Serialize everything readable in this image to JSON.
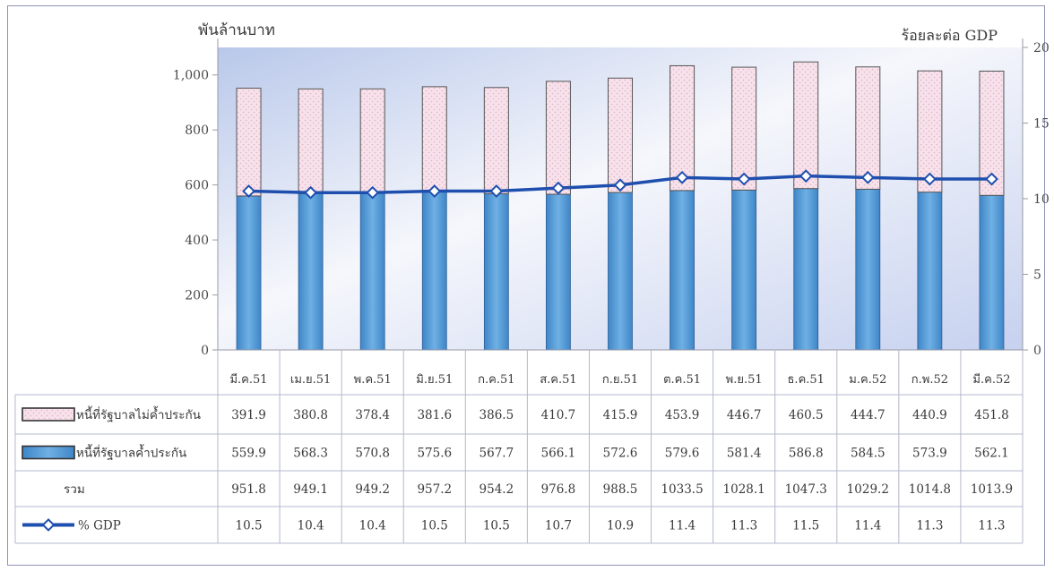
{
  "chart_data": {
    "type": "bar",
    "stacked": true,
    "left_axis_label": "พันล้านบาท",
    "right_axis_label": "ร้อยละต่อ GDP",
    "categories": [
      "มี.ค.51",
      "เม.ย.51",
      "พ.ค.51",
      "มิ.ย.51",
      "ก.ค.51",
      "ส.ค.51",
      "ก.ย.51",
      "ต.ค.51",
      "พ.ย.51",
      "ธ.ค.51",
      "ม.ค.52",
      "ก.พ.52",
      "มี.ค.52"
    ],
    "left_ylim": [
      0,
      1100
    ],
    "left_yticks": [
      0,
      200,
      400,
      600,
      800,
      1000
    ],
    "left_ytick_labels": [
      "0",
      "200",
      "400",
      "600",
      "800",
      "1,000"
    ],
    "right_ylim": [
      0,
      20
    ],
    "right_yticks": [
      0,
      5,
      10,
      15,
      20
    ],
    "right_ytick_labels": [
      "0",
      "5",
      "10",
      "15",
      "20"
    ],
    "grid": false,
    "series": [
      {
        "name": "หนี้ที่รัฐบาลค้ำประกัน",
        "kind": "bar",
        "color": "#5b9fd8",
        "values": [
          559.9,
          568.3,
          570.8,
          575.6,
          567.7,
          566.1,
          572.6,
          579.6,
          581.4,
          586.8,
          584.5,
          573.9,
          562.1
        ]
      },
      {
        "name": "หนี้ที่รัฐบาลไม่ค้ำประกัน",
        "kind": "bar",
        "color": "#f5dbe6",
        "values": [
          391.9,
          380.8,
          378.4,
          381.6,
          386.5,
          410.7,
          415.9,
          453.9,
          446.7,
          460.5,
          444.7,
          440.9,
          451.8
        ]
      },
      {
        "name": "% GDP",
        "kind": "line",
        "axis": "right",
        "color": "#1f4fae",
        "values": [
          10.5,
          10.4,
          10.4,
          10.5,
          10.5,
          10.7,
          10.9,
          11.4,
          11.3,
          11.5,
          11.4,
          11.3,
          11.3
        ]
      }
    ],
    "table": {
      "rows": [
        {
          "label": "หนี้ที่รัฐบาลไม่ค้ำประกัน",
          "legend": "bar-pink",
          "values": [
            "391.9",
            "380.8",
            "378.4",
            "381.6",
            "386.5",
            "410.7",
            "415.9",
            "453.9",
            "446.7",
            "460.5",
            "444.7",
            "440.9",
            "451.8"
          ]
        },
        {
          "label": "หนี้ที่รัฐบาลค้ำประกัน",
          "legend": "bar-blue",
          "values": [
            "559.9",
            "568.3",
            "570.8",
            "575.6",
            "567.7",
            "566.1",
            "572.6",
            "579.6",
            "581.4",
            "586.8",
            "584.5",
            "573.9",
            "562.1"
          ]
        },
        {
          "label": "รวม",
          "legend": "none",
          "values": [
            "951.8",
            "949.1",
            "949.2",
            "957.2",
            "954.2",
            "976.8",
            "988.5",
            "1033.5",
            "1028.1",
            "1047.3",
            "1029.2",
            "1014.8",
            "1013.9"
          ]
        },
        {
          "label": "% GDP",
          "legend": "line",
          "values": [
            "10.5",
            "10.4",
            "10.4",
            "10.5",
            "10.5",
            "10.7",
            "10.9",
            "11.4",
            "11.3",
            "11.5",
            "11.4",
            "11.3",
            "11.3"
          ]
        }
      ]
    }
  }
}
